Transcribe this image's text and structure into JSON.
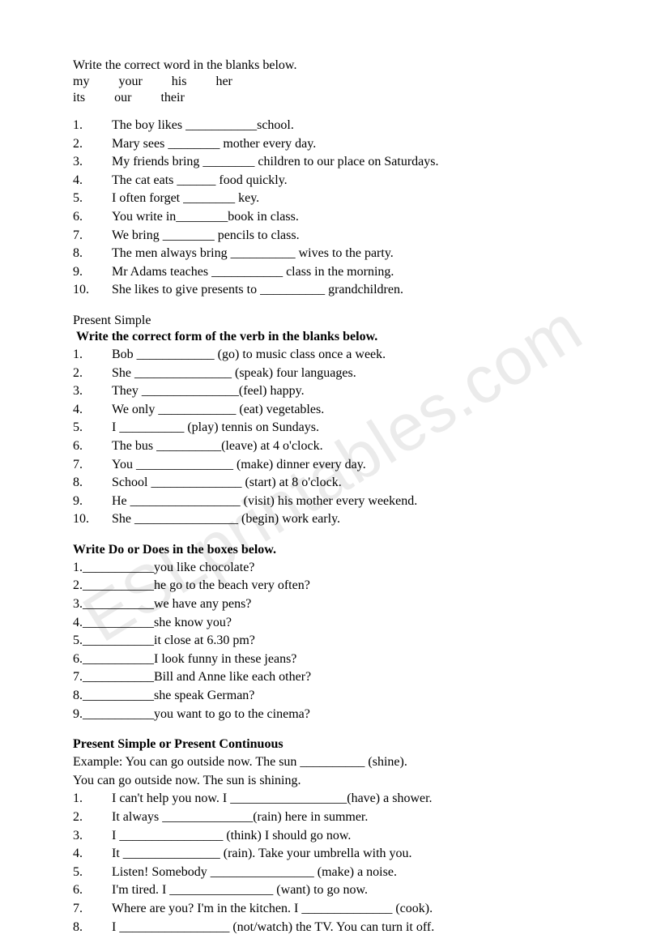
{
  "watermark": "ESLprintables.com",
  "section1": {
    "instruction": "Write the correct word in the blanks below.",
    "words_line1": [
      "my",
      "your",
      "his",
      "her"
    ],
    "words_line2": [
      "its",
      "our",
      "their"
    ],
    "items": [
      {
        "num": "1.",
        "text": "The boy likes ___________school."
      },
      {
        "num": "2.",
        "text": "Mary sees ________ mother every day."
      },
      {
        "num": "3.",
        "text": "My friends bring ________ children to our place on Saturdays."
      },
      {
        "num": "4.",
        "text": "The cat eats ______ food quickly."
      },
      {
        "num": "5.",
        "text": "I often forget ________ key."
      },
      {
        "num": "6.",
        "text": "You write in________book in class."
      },
      {
        "num": "7.",
        "text": "We bring ________ pencils to class."
      },
      {
        "num": "8.",
        "text": "The men always bring __________ wives to the party."
      },
      {
        "num": "9.",
        "text": "Mr Adams teaches ___________ class in the morning."
      },
      {
        "num": "10.",
        "text": "She likes to give presents to __________ grandchildren."
      }
    ]
  },
  "section2": {
    "title": "Present Simple",
    "instruction": "Write the correct form of the verb in the blanks below.",
    "items": [
      {
        "num": "1.",
        "text": "Bob  ____________ (go) to music class once a week."
      },
      {
        "num": "2.",
        "text": "She    _______________ (speak) four languages."
      },
      {
        "num": "3.",
        "text": "They  _______________(feel) happy."
      },
      {
        "num": "4.",
        "text": "We only ____________ (eat) vegetables."
      },
      {
        "num": "5.",
        "text": "I __________ (play) tennis on Sundays."
      },
      {
        "num": "6.",
        "text": "The bus __________(leave) at 4 o'clock."
      },
      {
        "num": "7.",
        "text": "You   _______________ (make) dinner every day."
      },
      {
        "num": "8.",
        "text": "School ______________ (start) at 8 o'clock."
      },
      {
        "num": "9.",
        "text": "He    _________________ (visit) his mother every weekend."
      },
      {
        "num": "10.",
        "text": "She    ________________  (begin) work early."
      }
    ]
  },
  "section3": {
    "instruction": " Write  Do or Does in the boxes below.",
    "items": [
      {
        "num": "1.",
        "text": "___________you like chocolate?"
      },
      {
        "num": "2.",
        "text": "___________he go to the beach very often?"
      },
      {
        "num": "3.",
        "text": "___________we have any pens?"
      },
      {
        "num": "4.",
        "text": "___________she know you?"
      },
      {
        "num": "5.",
        "text": "___________it close at 6.30 pm?"
      },
      {
        "num": "6.",
        "text": "___________I look funny in these jeans?"
      },
      {
        "num": "7.",
        "text": "___________Bill and Anne like each other?"
      },
      {
        "num": "8.",
        "text": "___________she speak German?"
      },
      {
        "num": "9.",
        "text": "___________you want to go to the cinema?"
      }
    ]
  },
  "section4": {
    "title": "Present Simple or Present Continuous",
    "example1": "Example: You can go outside now. The sun __________ (shine).",
    "example2": "You can go outside now. The sun is shining.",
    "items": [
      {
        "num": "1.",
        "text": "I can't help you now. I __________________(have) a shower."
      },
      {
        "num": "2.",
        "text": "It always ______________(rain) here in summer."
      },
      {
        "num": "3.",
        "text": "I ________________ (think) I should go now."
      },
      {
        "num": "4.",
        "text": "It _______________ (rain). Take your umbrella with you."
      },
      {
        "num": "5.",
        "text": "Listen! Somebody ________________ (make) a noise."
      },
      {
        "num": "6.",
        "text": "I'm tired. I ________________ (want) to go now."
      },
      {
        "num": "7.",
        "text": "Where are you? I'm in the kitchen. I ______________ (cook)."
      },
      {
        "num": "8.",
        "text": "I _________________ (not/watch) the TV.  You can turn it off."
      }
    ]
  }
}
